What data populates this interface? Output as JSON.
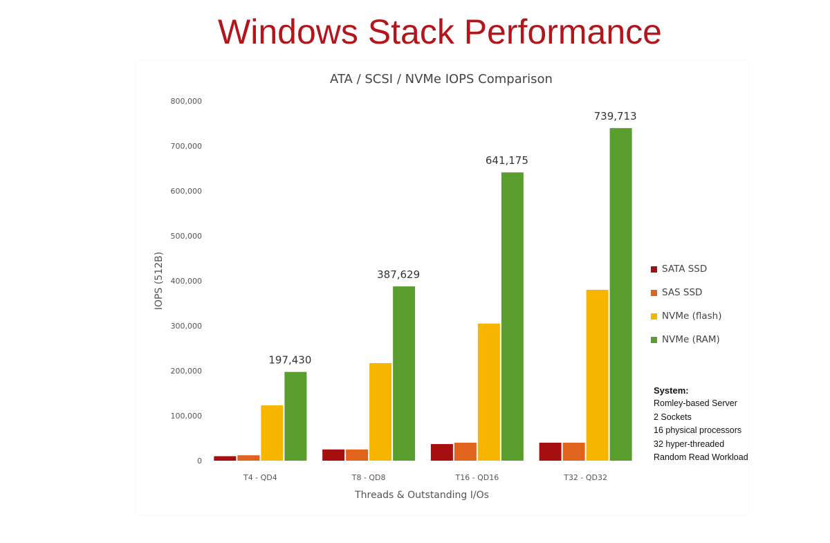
{
  "slide": {
    "title": "Windows Stack Performance"
  },
  "chart_data": {
    "type": "bar",
    "title": "ATA / SCSI / NVMe IOPS Comparison",
    "xlabel": "Threads & Outstanding I/Os",
    "ylabel": "IOPS (512B)",
    "ylim": [
      0,
      800000
    ],
    "yticks": [
      0,
      100000,
      200000,
      300000,
      400000,
      500000,
      600000,
      700000,
      800000
    ],
    "ytick_labels": [
      "0",
      "100,000",
      "200,000",
      "300,000",
      "400,000",
      "500,000",
      "600,000",
      "700,000",
      "800,000"
    ],
    "grid": false,
    "legend_position": "right",
    "categories": [
      "T4 - QD4",
      "T8 - QD8",
      "T16 - QD16",
      "T32 - QD32"
    ],
    "series": [
      {
        "name": "SATA SSD",
        "color": "#a50f0f",
        "values": [
          10000,
          25000,
          37000,
          40000
        ]
      },
      {
        "name": "SAS SSD",
        "color": "#e0641e",
        "values": [
          12000,
          25000,
          40000,
          40000
        ]
      },
      {
        "name": "NVMe (flash)",
        "color": "#f7b500",
        "values": [
          123000,
          217000,
          305000,
          380000
        ]
      },
      {
        "name": "NVMe (RAM)",
        "color": "#5a9e2f",
        "values": [
          197430,
          387629,
          641175,
          739713
        ]
      }
    ],
    "data_labels": [
      {
        "series": "NVMe (RAM)",
        "category": "T4 - QD4",
        "text": "197,430"
      },
      {
        "series": "NVMe (RAM)",
        "category": "T8 - QD8",
        "text": "387,629"
      },
      {
        "series": "NVMe (RAM)",
        "category": "T16 - QD16",
        "text": "641,175"
      },
      {
        "series": "NVMe (RAM)",
        "category": "T32 - QD32",
        "text": "739,713"
      }
    ]
  },
  "system_note": {
    "heading": "System:",
    "lines": [
      "Romley-based Server",
      "2 Sockets",
      "16 physical processors",
      "32 hyper-threaded",
      "Random Read Workload"
    ]
  }
}
